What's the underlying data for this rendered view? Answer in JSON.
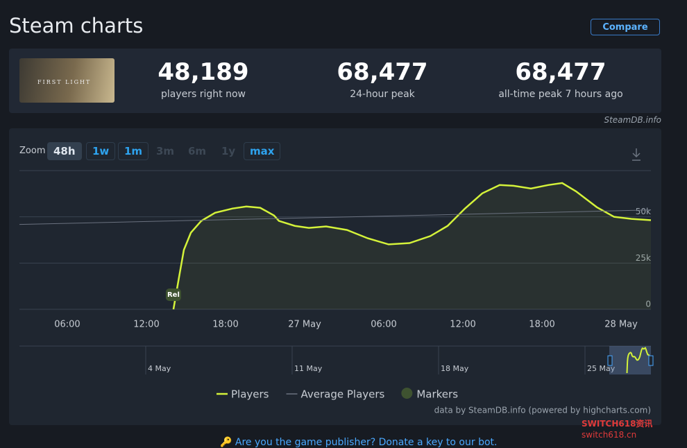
{
  "header": {
    "title": "Steam charts",
    "compare": "Compare"
  },
  "game": {
    "thumbnail_text": "FIRST LIGHT"
  },
  "stats": [
    {
      "value": "48,189",
      "label": "players right now"
    },
    {
      "value": "68,477",
      "label": "24-hour peak"
    },
    {
      "value": "68,477",
      "label": "all-time peak 7 hours ago"
    }
  ],
  "source": "SteamDB.info",
  "zoom": {
    "label": "Zoom",
    "options": [
      "48h",
      "1w",
      "1m",
      "3m",
      "6m",
      "1y",
      "max"
    ]
  },
  "chart_data": {
    "type": "line",
    "series": [
      {
        "name": "Players",
        "color": "#d4f23a",
        "x": [
          14.05,
          14.47,
          14.84,
          15.37,
          16.16,
          17.21,
          18.53,
          19.58,
          20.63,
          21.68,
          22.05,
          23.26,
          24.32,
          25.63,
          27.21,
          28.79,
          30.37,
          31.95,
          33.53,
          34.84,
          36.16,
          37.47,
          38.79,
          39.84,
          41.16,
          42.47,
          43.53,
          44.58,
          46.16,
          47.47,
          48.79,
          50.26
        ],
        "values": [
          0,
          17200,
          32100,
          41400,
          47800,
          52200,
          54500,
          55600,
          54900,
          50700,
          47800,
          45100,
          44000,
          44800,
          42900,
          38400,
          35100,
          35800,
          39600,
          45100,
          54500,
          62700,
          67200,
          66800,
          65300,
          67200,
          68300,
          63800,
          55200,
          50000,
          48900,
          48200
        ]
      },
      {
        "name": "Average Players",
        "color": "#6b7280",
        "x": [
          2.37,
          50.26
        ],
        "values": [
          45900,
          53700
        ]
      }
    ],
    "markers": {
      "name": "Markers",
      "color": "#3e5230",
      "items": [
        {
          "x": 14.05,
          "label": "Rel"
        }
      ]
    },
    "xlim": [
      2.37,
      50.26
    ],
    "xticks": [
      {
        "value": 6,
        "label": "06:00"
      },
      {
        "value": 12,
        "label": "12:00"
      },
      {
        "value": 18,
        "label": "18:00"
      },
      {
        "value": 24,
        "label": "27 May"
      },
      {
        "value": 30,
        "label": "06:00"
      },
      {
        "value": 36,
        "label": "12:00"
      },
      {
        "value": 42,
        "label": "18:00"
      },
      {
        "value": 48,
        "label": "28 May"
      }
    ],
    "ylim": [
      0,
      75000
    ],
    "yticks": [
      0,
      {
        "value": 25000,
        "label": "25k"
      },
      {
        "value": 50000,
        "label": "50k"
      }
    ],
    "grid": true,
    "navigator_labels": [
      "4 May",
      "11 May",
      "18 May",
      "25 May"
    ],
    "credits": "data by SteamDB.info (powered by highcharts.com)"
  },
  "footer": "Are you the game publisher? Donate a key to our bot.",
  "watermark": [
    "SWITCH618资讯",
    "switch618.cn"
  ]
}
